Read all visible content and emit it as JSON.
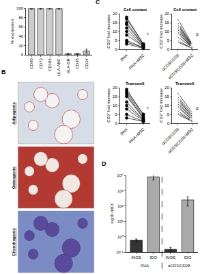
{
  "chart_data": [
    {
      "type": "bar",
      "panel": "A",
      "categories": [
        "CD90",
        "CD73",
        "CD105",
        "HLA-ABC",
        "HLA-DR",
        "CD45",
        "CD34"
      ],
      "values": [
        99,
        99,
        99,
        99,
        2,
        2,
        8
      ],
      "errors": [
        1,
        1,
        1,
        1,
        1,
        1,
        4
      ],
      "color": "#cccccc",
      "ylabel": "% expression",
      "ylim": [
        0,
        100
      ],
      "yticks": [
        0,
        20,
        40,
        60,
        80,
        100
      ]
    },
    {
      "type": "paired",
      "panel": "C",
      "title": "Cell contact",
      "categories": [
        "PHA",
        "PHA+MSC"
      ],
      "values": [
        [
          18,
          3
        ],
        [
          17,
          3
        ],
        [
          15,
          2.5
        ],
        [
          14,
          2
        ],
        [
          12,
          2
        ],
        [
          10,
          1.5
        ],
        [
          8,
          1.5
        ],
        [
          5,
          1
        ],
        [
          4,
          1
        ],
        [
          3,
          0.5
        ]
      ],
      "marker": "circle",
      "ylabel": "CD3⁺ fold increase",
      "ylim": [
        0,
        20
      ],
      "yticks": [
        0,
        5,
        10,
        15,
        20
      ],
      "annotations": [
        "*"
      ]
    },
    {
      "type": "paired",
      "title": "Cell contact",
      "categories": [
        "αCD3/CD28",
        "αCD3/CD28+MSC"
      ],
      "values": [
        [
          17,
          3
        ],
        [
          15,
          2.5
        ],
        [
          14,
          2
        ],
        [
          13,
          2
        ],
        [
          12,
          1.5
        ],
        [
          11,
          1.5
        ],
        [
          10,
          1
        ],
        [
          9,
          1
        ],
        [
          7,
          1
        ],
        [
          5,
          0.5
        ],
        [
          4,
          0.5
        ]
      ],
      "marker": "square-open",
      "ylabel": "CD3⁺ fold increase",
      "ylim": [
        0,
        20
      ],
      "yticks": [
        0,
        5,
        10,
        15,
        20
      ],
      "annotations": [
        "#"
      ]
    },
    {
      "type": "paired",
      "title": "Transwell",
      "categories": [
        "PHA",
        "PHA+MSC"
      ],
      "values": [
        [
          19,
          5
        ],
        [
          18,
          5
        ],
        [
          17,
          4
        ],
        [
          16,
          3
        ],
        [
          15,
          3
        ],
        [
          12,
          2
        ],
        [
          10,
          2
        ],
        [
          8,
          1.5
        ],
        [
          5,
          1
        ],
        [
          3,
          1
        ]
      ],
      "marker": "circle",
      "ylabel": "CD3⁺ fold increase",
      "ylim": [
        0,
        20
      ],
      "yticks": [
        0,
        5,
        10,
        15,
        20
      ],
      "annotations": [
        "*"
      ]
    },
    {
      "type": "paired",
      "title": "Transwell",
      "categories": [
        "αCD3/CD28",
        "αCD3/CD28+MSC"
      ],
      "values": [
        [
          17,
          6
        ],
        [
          15,
          5
        ],
        [
          14,
          4
        ],
        [
          13,
          4
        ],
        [
          12,
          3
        ],
        [
          11,
          3
        ],
        [
          10,
          2
        ],
        [
          9,
          2
        ],
        [
          7,
          1.5
        ],
        [
          6,
          1
        ],
        [
          5,
          1
        ]
      ],
      "marker": "square-open",
      "ylabel": "CD3⁺ fold increase",
      "ylim": [
        0,
        20
      ],
      "yticks": [
        0,
        5,
        10,
        15,
        20
      ],
      "annotations": [
        "#"
      ]
    },
    {
      "type": "bar",
      "panel": "D",
      "categories": [
        "iNOS",
        "IDO",
        "iNOS",
        "IDO"
      ],
      "groups": [
        "PHA",
        "αCD3/CD28"
      ],
      "values": [
        0.6,
        8000,
        0.15,
        250
      ],
      "errors": [
        0.1,
        3000,
        0.05,
        150
      ],
      "colors": [
        "#333333",
        "#aaaaaa",
        "#333333",
        "#aaaaaa"
      ],
      "log": "y",
      "ylabel": "log10 ddCt",
      "ylim": [
        0.1,
        10000
      ],
      "yticks": [
        {
          "value": 0.1,
          "label": "10⁻¹"
        },
        {
          "value": 1,
          "label": "10⁰"
        },
        {
          "value": 10,
          "label": "10¹"
        },
        {
          "value": 100,
          "label": "10²"
        },
        {
          "value": 1000,
          "label": "10³"
        },
        {
          "value": 10000,
          "label": "10⁴"
        }
      ]
    }
  ],
  "images": {
    "panel": "B",
    "labels": [
      "Adipogenic",
      "Osteogenic",
      "Chondrogenic"
    ]
  }
}
